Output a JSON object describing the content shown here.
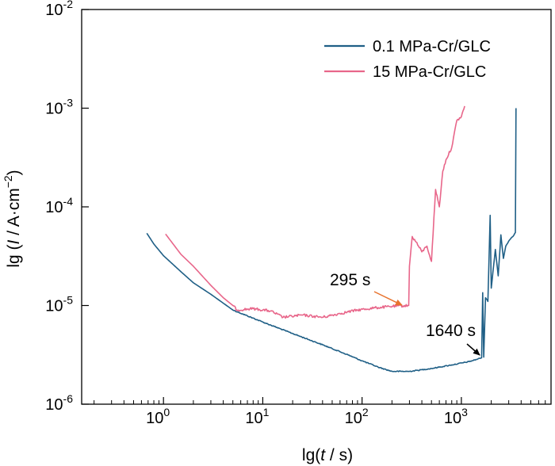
{
  "chart_data": {
    "type": "line",
    "xscale": "log",
    "yscale": "log",
    "xlim": [
      0.15,
      8000
    ],
    "ylim": [
      1e-06,
      0.01
    ],
    "xlabel": {
      "prefix": "lg(",
      "var": "t",
      "suffix": " / s)"
    },
    "ylabel": {
      "prefix": "lg (",
      "var": "I",
      "mid": " / A·cm",
      "exp": "−2",
      "suffix": ")"
    },
    "x_ticks": [
      {
        "value": 1,
        "base": "10",
        "exp": "0"
      },
      {
        "value": 10,
        "base": "10",
        "exp": "1"
      },
      {
        "value": 100,
        "base": "10",
        "exp": "2"
      },
      {
        "value": 1000,
        "base": "10",
        "exp": "3"
      }
    ],
    "y_ticks": [
      {
        "value": 1e-06,
        "base": "10",
        "exp": "-6"
      },
      {
        "value": 1e-05,
        "base": "10",
        "exp": "-5"
      },
      {
        "value": 0.0001,
        "base": "10",
        "exp": "-4"
      },
      {
        "value": 0.001,
        "base": "10",
        "exp": "-3"
      },
      {
        "value": 0.01,
        "base": "10",
        "exp": "-2"
      }
    ],
    "grid": false,
    "legend_position": "top-right",
    "series": [
      {
        "name": "0.1 MPa-Cr/GLC",
        "color": "#1f5f86",
        "points": [
          [
            0.68,
            5.4e-05
          ],
          [
            0.8,
            4.2e-05
          ],
          [
            1.0,
            3.2e-05
          ],
          [
            1.5,
            2.2e-05
          ],
          [
            2.0,
            1.7e-05
          ],
          [
            3.0,
            1.3e-05
          ],
          [
            5.0,
            9e-06
          ],
          [
            10,
            6.8e-06
          ],
          [
            20,
            5.2e-06
          ],
          [
            40,
            4e-06
          ],
          [
            70,
            3.2e-06
          ],
          [
            100,
            2.75e-06
          ],
          [
            150,
            2.35e-06
          ],
          [
            200,
            2.15e-06
          ],
          [
            300,
            2.15e-06
          ],
          [
            500,
            2.3e-06
          ],
          [
            800,
            2.5e-06
          ],
          [
            1200,
            2.7e-06
          ],
          [
            1600,
            2.95e-06
          ],
          [
            1640,
            1.35e-05
          ],
          [
            1680,
            3e-06
          ],
          [
            1750,
            1.2e-05
          ],
          [
            1850,
            1.1e-05
          ],
          [
            1950,
            8.2e-05
          ],
          [
            2000,
            1.5e-05
          ],
          [
            2200,
            3.7e-05
          ],
          [
            2350,
            2e-05
          ],
          [
            2500,
            5.2e-05
          ],
          [
            2650,
            3e-05
          ],
          [
            2800,
            4e-05
          ],
          [
            3000,
            4.5e-05
          ],
          [
            3300,
            5e-05
          ],
          [
            3500,
            5.5e-05
          ],
          [
            3550,
            0.001
          ]
        ]
      },
      {
        "name": "15 MPa-Cr/GLC",
        "color": "#e8668a",
        "points": [
          [
            1.05,
            5.3e-05
          ],
          [
            1.5,
            3.3e-05
          ],
          [
            2.0,
            2.5e-05
          ],
          [
            3.0,
            1.6e-05
          ],
          [
            4.0,
            1.2e-05
          ],
          [
            5.0,
            1e-05
          ],
          [
            5.5,
            9e-06
          ],
          [
            8.0,
            9.3e-06
          ],
          [
            12,
            8.8e-06
          ],
          [
            16,
            7.6e-06
          ],
          [
            25,
            8e-06
          ],
          [
            40,
            7.6e-06
          ],
          [
            60,
            8.3e-06
          ],
          [
            90,
            9e-06
          ],
          [
            140,
            9.5e-06
          ],
          [
            200,
            9.8e-06
          ],
          [
            295,
            1e-05
          ],
          [
            300,
            2.5e-05
          ],
          [
            320,
            5e-05
          ],
          [
            350,
            4.4e-05
          ],
          [
            400,
            3.5e-05
          ],
          [
            450,
            4e-05
          ],
          [
            500,
            2.8e-05
          ],
          [
            550,
            0.00015
          ],
          [
            600,
            0.0001
          ],
          [
            650,
            0.00023
          ],
          [
            700,
            0.0003
          ],
          [
            800,
            0.0004
          ],
          [
            900,
            0.00075
          ],
          [
            1000,
            0.00082
          ],
          [
            1080,
            0.00105
          ]
        ]
      }
    ],
    "annotations": [
      {
        "text": "295 s",
        "x": 295,
        "y": 1e-05,
        "arrow_color": "#e8732e"
      },
      {
        "text": "1640 s",
        "x": 1640,
        "y": 2.95e-06,
        "arrow_color": "#000000"
      }
    ]
  }
}
